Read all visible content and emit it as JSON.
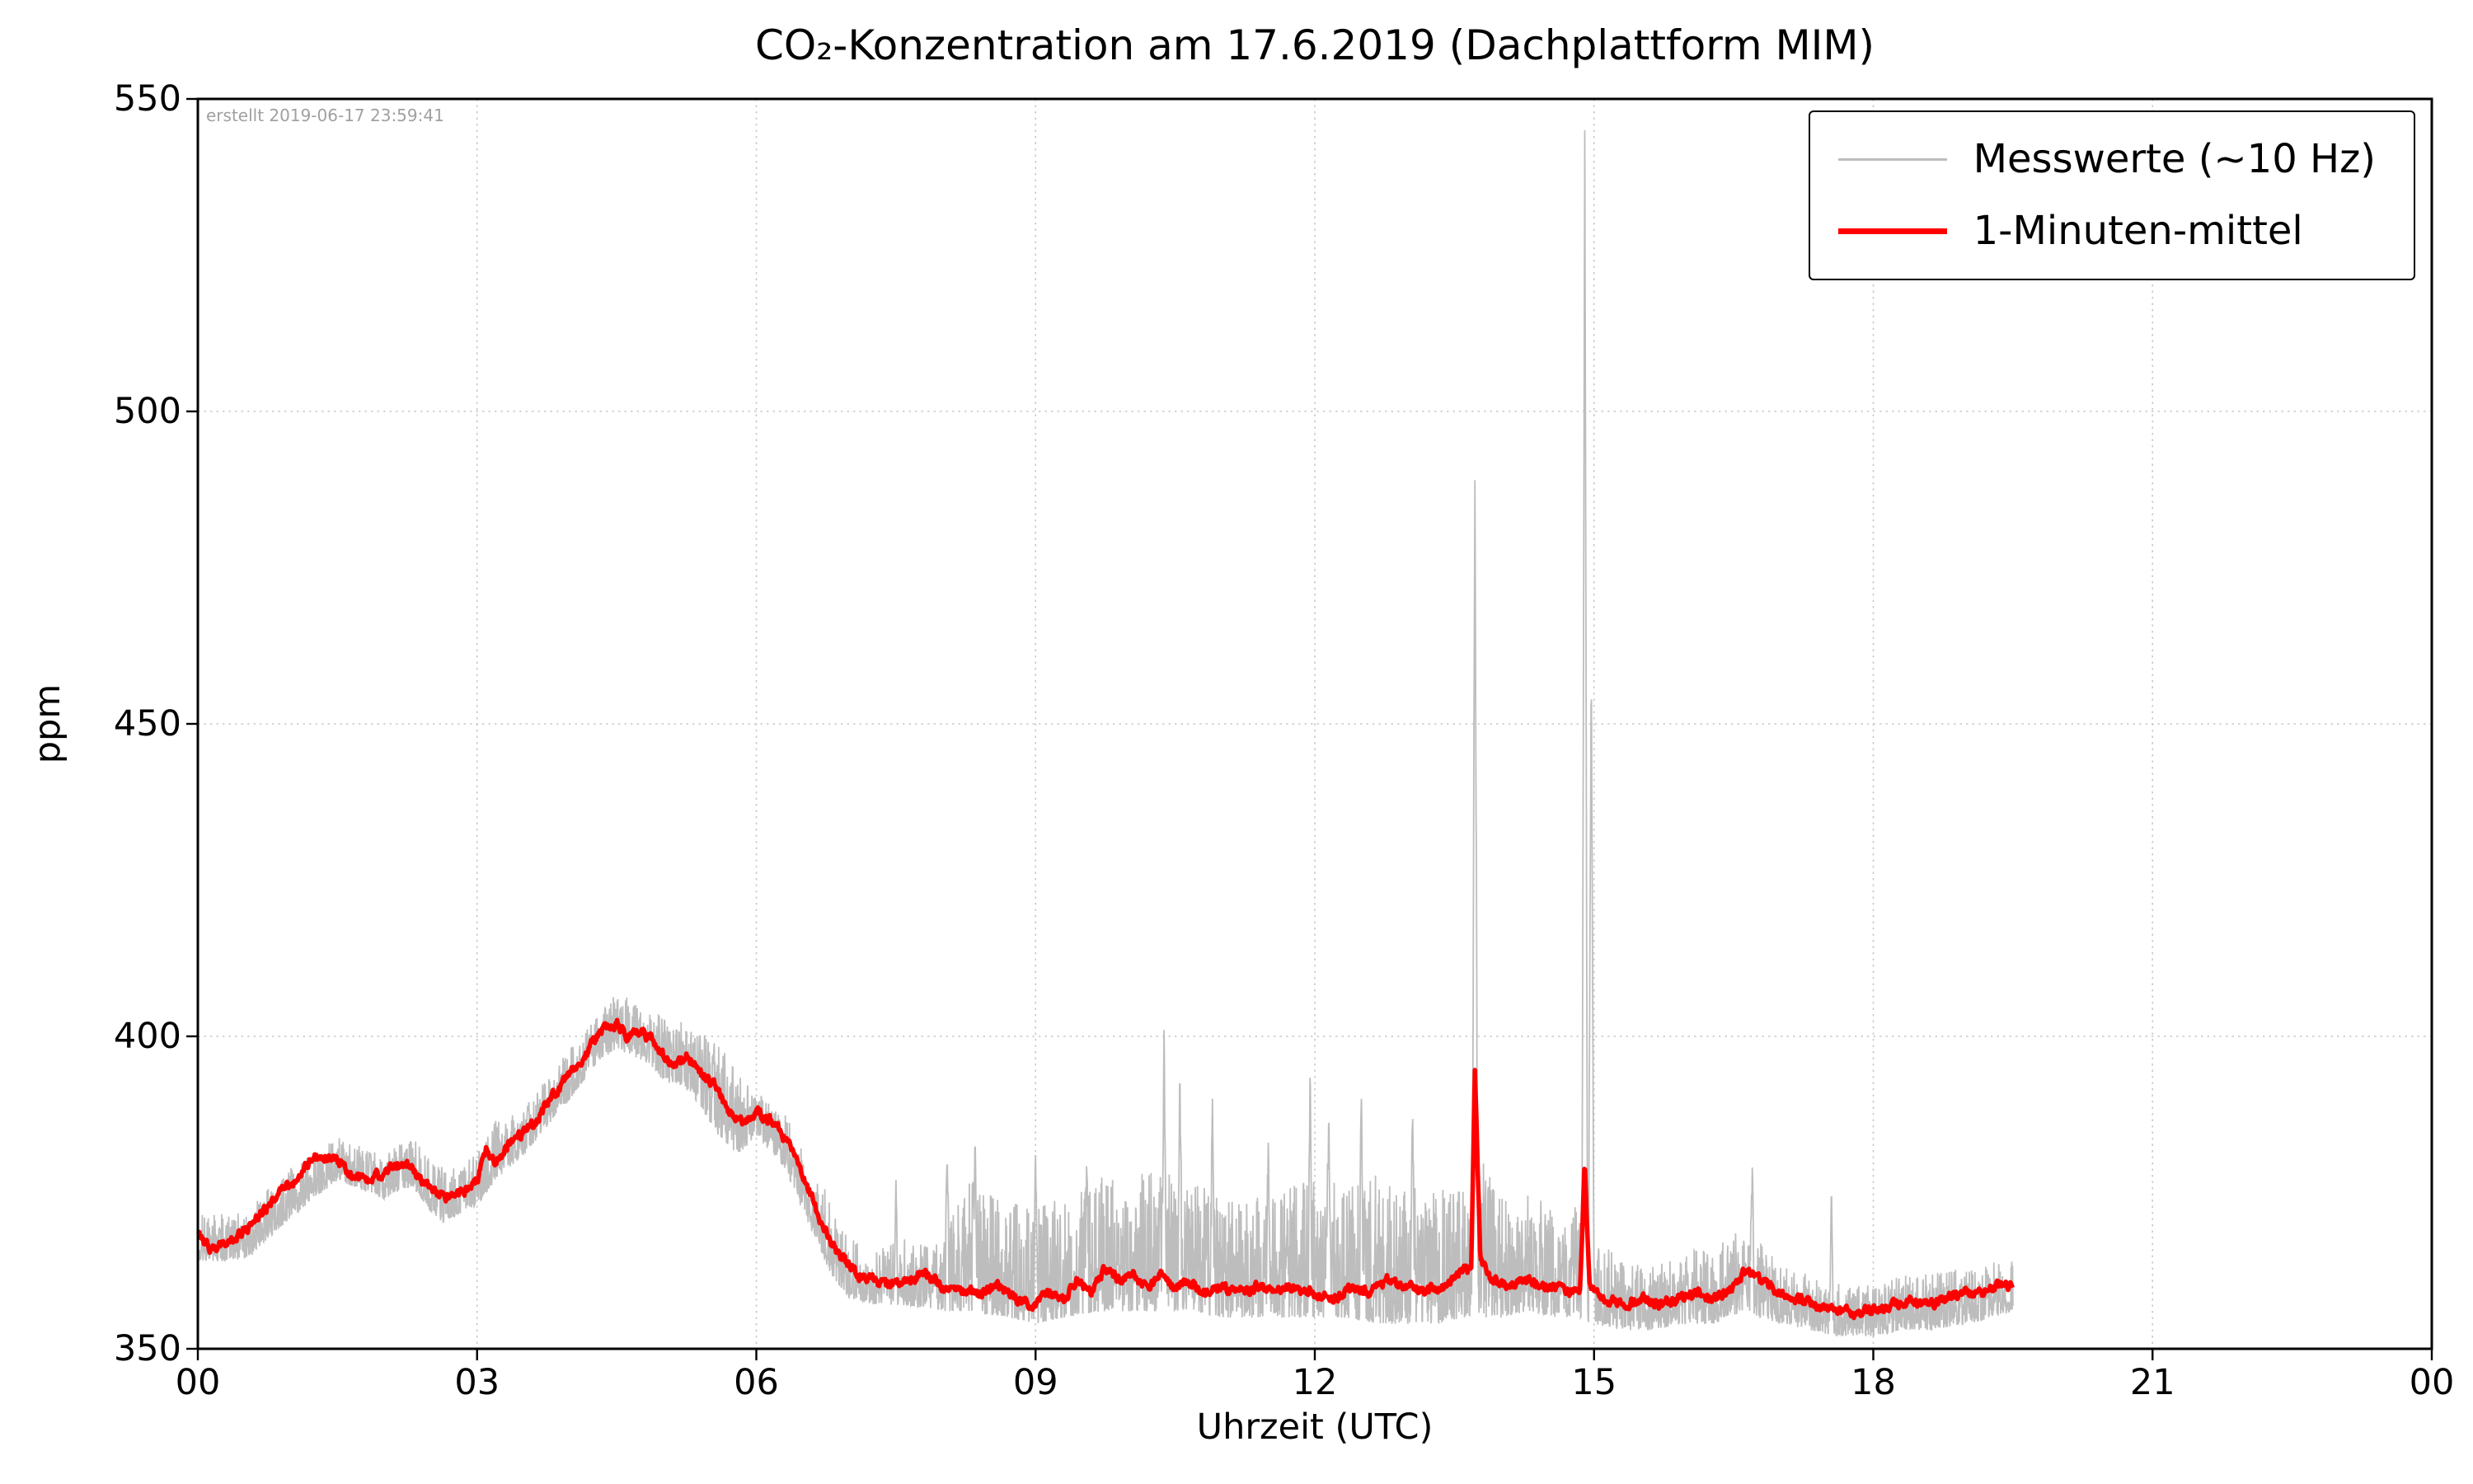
{
  "created_note": "erstellt 2019-06-17 23:59:41",
  "chart_data": {
    "type": "line",
    "title": "CO₂-Konzentration am 17.6.2019 (Dachplattform MIM)",
    "xlabel": "Uhrzeit (UTC)",
    "ylabel": "ppm",
    "xlim": [
      0,
      24
    ],
    "ylim": [
      350,
      550
    ],
    "x_end": 19.5,
    "x_tick_values": [
      0,
      3,
      6,
      9,
      12,
      15,
      18,
      21,
      24
    ],
    "x_tick_labels": [
      "00",
      "03",
      "06",
      "09",
      "12",
      "15",
      "18",
      "21",
      "00"
    ],
    "y_tick_values": [
      350,
      400,
      450,
      500,
      550
    ],
    "y_tick_labels": [
      "350",
      "400",
      "450",
      "500",
      "550"
    ],
    "grid": "dotted",
    "legend_position": "upper right",
    "colors": {
      "messwerte": "#bdbdbd",
      "minute_mean": "#ff0000",
      "grid": "#c8c8c8",
      "frame": "#000000",
      "tick": "#000000",
      "note": "#a0a0a0"
    },
    "series": [
      {
        "name": "Messwerte (~10 Hz)",
        "color": "#bdbdbd",
        "kind": "noise-band",
        "envelope": {
          "x": [
            0.0,
            0.5,
            1.0,
            1.5,
            2.0,
            2.3,
            2.6,
            3.0,
            3.2,
            3.5,
            4.0,
            4.3,
            4.5,
            4.8,
            5.0,
            5.3,
            5.6,
            5.8,
            6.0,
            6.3,
            6.5,
            6.8,
            7.0,
            7.3,
            7.6,
            8.0,
            8.3,
            8.7,
            9.0,
            9.3,
            9.7,
            10.0,
            10.3,
            10.7,
            11.0,
            11.3,
            11.7,
            12.0,
            12.3,
            12.7,
            13.0,
            13.3,
            13.6,
            13.8,
            14.0,
            14.3,
            14.6,
            14.8,
            15.0,
            15.3,
            15.6,
            16.0,
            16.3,
            16.6,
            16.8,
            17.0,
            17.3,
            17.6,
            18.0,
            18.3,
            18.6,
            19.0,
            19.3,
            19.5
          ],
          "lo": [
            364,
            364,
            371,
            377,
            374,
            376,
            370,
            373,
            377,
            381,
            390,
            396,
            398,
            396,
            393,
            391,
            384,
            381,
            384,
            379,
            372,
            362,
            358,
            357,
            357,
            356,
            356,
            355,
            354,
            355,
            356,
            356,
            356,
            356,
            355,
            355,
            355,
            355,
            355,
            354,
            354,
            354,
            355,
            355,
            355,
            356,
            355,
            355,
            354,
            353,
            353,
            354,
            354,
            356,
            355,
            354,
            353,
            352,
            352,
            353,
            353,
            354,
            355,
            356
          ],
          "hi": [
            372,
            372,
            379,
            384,
            381,
            384,
            379,
            381,
            387,
            389,
            398,
            404,
            407,
            405,
            403,
            402,
            399,
            394,
            391,
            388,
            382,
            374,
            368,
            366,
            368,
            368,
            377,
            374,
            373,
            375,
            378,
            377,
            380,
            377,
            376,
            374,
            376,
            378,
            377,
            378,
            376,
            375,
            377,
            380,
            374,
            375,
            372,
            373,
            368,
            364,
            363,
            366,
            366,
            370,
            367,
            364,
            362,
            361,
            360,
            362,
            362,
            363,
            364,
            365
          ]
        },
        "spikes": {
          "x": [
            7.5,
            8.05,
            8.35,
            9.0,
            9.55,
            10.38,
            10.55,
            10.9,
            11.5,
            11.95,
            12.15,
            12.5,
            13.05,
            13.72,
            14.9,
            14.97,
            16.7,
            17.55
          ],
          "y": [
            377,
            382,
            384,
            381,
            380,
            401,
            396,
            390,
            383,
            396,
            388,
            390,
            388,
            489,
            545,
            460,
            379,
            376
          ]
        }
      },
      {
        "name": "1-Minuten-mittel",
        "color": "#ff0000",
        "kind": "line",
        "x": [
          0.0,
          0.15,
          0.3,
          0.5,
          0.7,
          0.9,
          1.05,
          1.2,
          1.35,
          1.5,
          1.65,
          1.8,
          1.95,
          2.1,
          2.25,
          2.4,
          2.55,
          2.7,
          2.85,
          3.0,
          3.1,
          3.2,
          3.3,
          3.45,
          3.6,
          3.75,
          3.9,
          4.05,
          4.2,
          4.35,
          4.5,
          4.6,
          4.75,
          4.9,
          5.0,
          5.1,
          5.25,
          5.4,
          5.55,
          5.7,
          5.85,
          6.0,
          6.1,
          6.2,
          6.35,
          6.5,
          6.65,
          6.8,
          6.95,
          7.1,
          7.25,
          7.4,
          7.6,
          7.8,
          8.0,
          8.2,
          8.4,
          8.6,
          8.8,
          9.0,
          9.15,
          9.3,
          9.45,
          9.6,
          9.75,
          9.9,
          10.05,
          10.2,
          10.35,
          10.5,
          10.65,
          10.8,
          11.0,
          11.2,
          11.4,
          11.6,
          11.8,
          12.0,
          12.2,
          12.4,
          12.6,
          12.8,
          13.0,
          13.2,
          13.4,
          13.55,
          13.68,
          13.72,
          13.78,
          13.9,
          14.1,
          14.3,
          14.5,
          14.7,
          14.85,
          14.9,
          14.95,
          15.1,
          15.3,
          15.5,
          15.7,
          15.9,
          16.1,
          16.3,
          16.5,
          16.65,
          16.8,
          17.0,
          17.2,
          17.4,
          17.6,
          17.8,
          18.0,
          18.2,
          18.4,
          18.6,
          18.8,
          19.0,
          19.2,
          19.35,
          19.5
        ],
        "y": [
          368,
          366,
          367,
          369,
          372,
          375,
          377,
          380,
          381,
          380,
          378,
          377,
          378,
          379,
          380,
          377,
          375,
          374,
          375,
          377,
          382,
          380,
          382,
          384,
          386,
          389,
          392,
          395,
          398,
          401,
          402,
          400,
          401,
          399,
          397,
          395,
          397,
          394,
          392,
          388,
          386,
          388,
          387,
          386,
          383,
          378,
          372,
          367,
          364,
          362,
          361,
          360,
          361,
          362,
          360,
          359,
          359,
          360,
          358,
          357,
          359,
          358,
          361,
          359,
          363,
          361,
          362,
          360,
          362,
          360,
          361,
          359,
          360,
          359,
          360,
          359,
          360,
          359,
          358,
          360,
          359,
          361,
          360,
          359,
          360,
          362,
          363,
          395,
          364,
          361,
          360,
          361,
          360,
          359,
          359,
          380,
          360,
          358,
          357,
          358,
          357,
          358,
          359,
          358,
          360,
          363,
          361,
          359,
          358,
          357,
          356,
          356,
          356,
          357,
          358,
          357,
          358,
          359,
          359,
          360,
          360
        ]
      }
    ]
  }
}
